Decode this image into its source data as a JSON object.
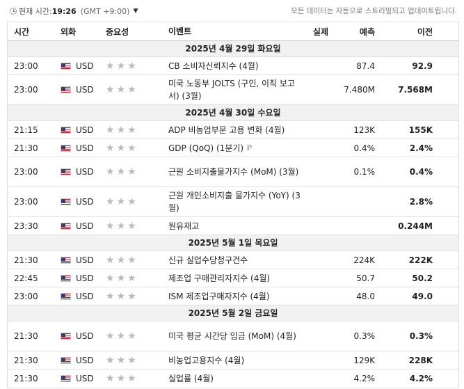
{
  "header": {
    "clock_label": "현재 시간:",
    "clock_time": "19:26",
    "timezone": "(GMT +9:00)",
    "notice": "모든 데이터는 자동으로 스트리밍되고 업데이트됩니다."
  },
  "columns": {
    "time": "시간",
    "currency": "외화",
    "importance": "중요성",
    "event": "이벤트",
    "actual": "실제",
    "forecast": "예측",
    "previous": "이전"
  },
  "icons": {
    "clock": "clock-icon",
    "dropdown": "chevron-down-icon",
    "flag": "us-flag-icon",
    "star": "star-icon",
    "preliminary": "preliminary-icon"
  },
  "colors": {
    "star": "#b9b9b9",
    "date_row_bg": "#f1f1f1"
  },
  "days": [
    {
      "date": "2025년 4월 29일 화요일",
      "events": [
        {
          "time": "23:00",
          "currency": "USD",
          "importance": 3,
          "event": "CB 소비자신뢰지수 (4월)",
          "actual": "",
          "forecast": "87.4",
          "previous": "92.9",
          "lines": 1
        },
        {
          "time": "23:00",
          "currency": "USD",
          "importance": 3,
          "event": "미국 노동부 JOLTS (구인, 이직 보고서) (3월)",
          "actual": "",
          "forecast": "7.480M",
          "previous": "7.568M",
          "lines": 2
        }
      ]
    },
    {
      "date": "2025년 4월 30일 수요일",
      "events": [
        {
          "time": "21:15",
          "currency": "USD",
          "importance": 3,
          "event": "ADP 비농업부문 고용 변화 (4월)",
          "actual": "",
          "forecast": "123K",
          "previous": "155K",
          "lines": 1
        },
        {
          "time": "21:30",
          "currency": "USD",
          "importance": 3,
          "event": "GDP (QoQ) (1분기)",
          "actual": "",
          "forecast": "0.4%",
          "previous": "2.4%",
          "lines": 1,
          "prelim": "P"
        },
        {
          "time": "23:00",
          "currency": "USD",
          "importance": 3,
          "event": "근원 소비지출물가지수 (MoM) (3월)",
          "actual": "",
          "forecast": "0.1%",
          "previous": "0.4%",
          "lines": 2
        },
        {
          "time": "23:00",
          "currency": "USD",
          "importance": 3,
          "event": "근원 개인소비지출 물가지수 (YoY) (3월)",
          "actual": "",
          "forecast": "",
          "previous": "2.8%",
          "lines": 2
        },
        {
          "time": "23:30",
          "currency": "USD",
          "importance": 3,
          "event": "원유재고",
          "actual": "",
          "forecast": "",
          "previous": "0.244M",
          "lines": 1
        }
      ]
    },
    {
      "date": "2025년 5월 1일 목요일",
      "events": [
        {
          "time": "21:30",
          "currency": "USD",
          "importance": 3,
          "event": "신규 실업수당청구건수",
          "actual": "",
          "forecast": "224K",
          "previous": "222K",
          "lines": 1
        },
        {
          "time": "22:45",
          "currency": "USD",
          "importance": 3,
          "event": "제조업 구매관리자지수 (4월)",
          "actual": "",
          "forecast": "50.7",
          "previous": "50.2",
          "lines": 1
        },
        {
          "time": "23:00",
          "currency": "USD",
          "importance": 3,
          "event": "ISM 제조업구매자지수 (4월)",
          "actual": "",
          "forecast": "48.0",
          "previous": "49.0",
          "lines": 1
        }
      ]
    },
    {
      "date": "2025년 5월 2일 금요일",
      "events": [
        {
          "time": "21:30",
          "currency": "USD",
          "importance": 3,
          "event": "미국 평균 시간당 임금 (MoM) (4월)",
          "actual": "",
          "forecast": "0.3%",
          "previous": "0.3%",
          "lines": 2
        },
        {
          "time": "21:30",
          "currency": "USD",
          "importance": 3,
          "event": "비농업고용지수 (4월)",
          "actual": "",
          "forecast": "129K",
          "previous": "228K",
          "lines": 1
        },
        {
          "time": "21:30",
          "currency": "USD",
          "importance": 3,
          "event": "실업률 (4월)",
          "actual": "",
          "forecast": "4.2%",
          "previous": "4.2%",
          "lines": 1
        }
      ]
    }
  ]
}
